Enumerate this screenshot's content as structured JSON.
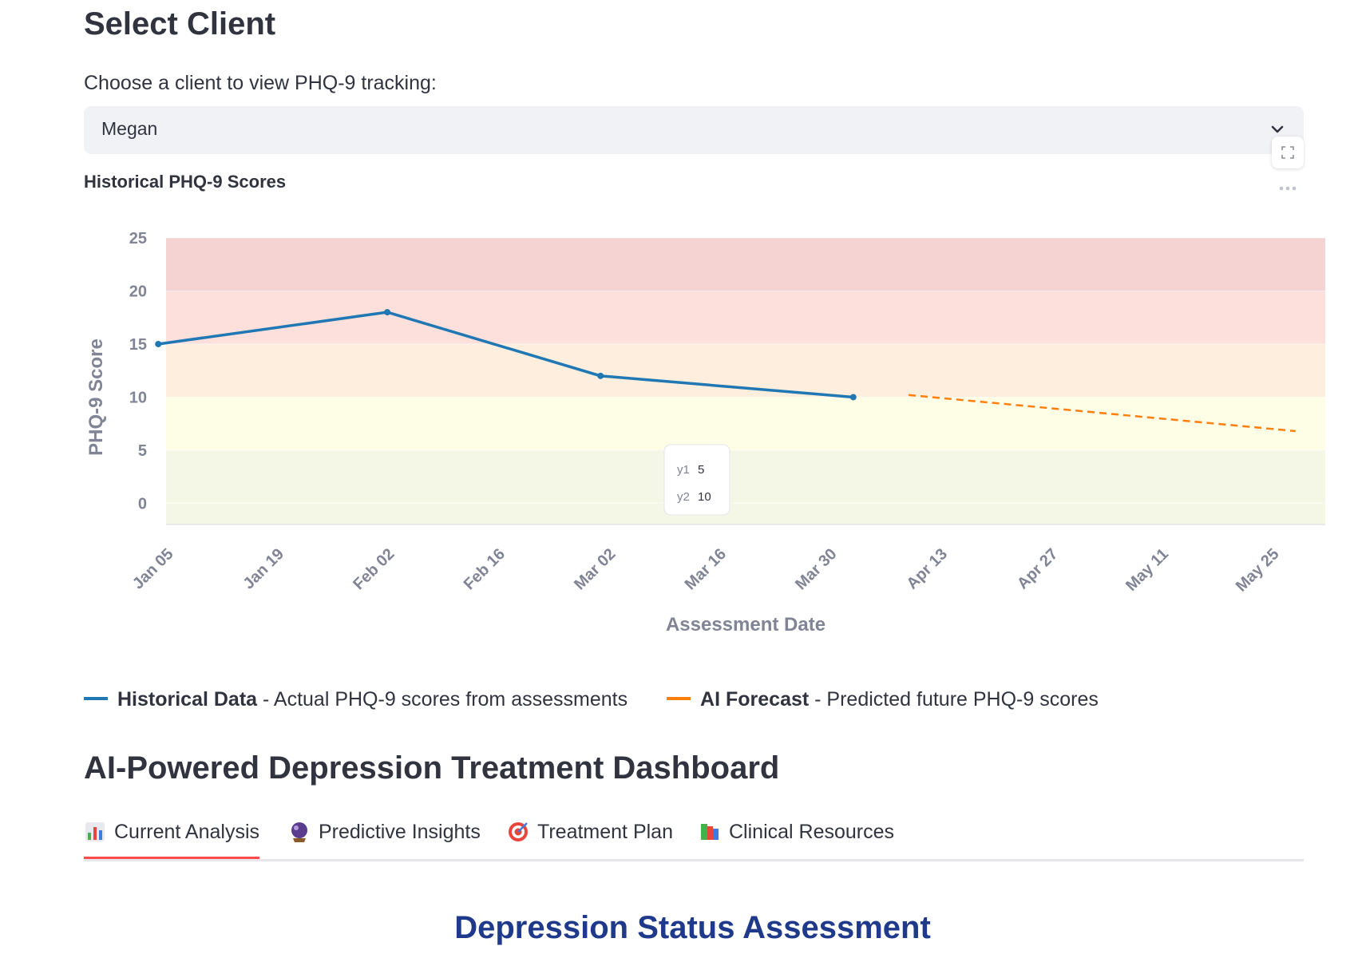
{
  "header": {
    "title": "Select Client"
  },
  "client_select": {
    "label": "Choose a client to view PHQ-9 tracking:",
    "value": "Megan"
  },
  "chart_section": {
    "title": "Historical PHQ-9 Scores"
  },
  "chart_data": {
    "type": "line",
    "xlabel": "Assessment Date",
    "ylabel": "PHQ-9 Score",
    "ylim": [
      -2,
      25
    ],
    "x_ticks": [
      "Jan 05",
      "Jan 19",
      "Feb 02",
      "Feb 16",
      "Mar 02",
      "Mar 16",
      "Mar 30",
      "Apr 13",
      "Apr 27",
      "May 11",
      "May 25"
    ],
    "y_ticks": [
      0,
      5,
      10,
      15,
      20,
      25
    ],
    "bands": [
      {
        "from": -2,
        "to": 5,
        "color": "#f5f7e6"
      },
      {
        "from": 5,
        "to": 10,
        "color": "#fefde6"
      },
      {
        "from": 10,
        "to": 15,
        "color": "#fdeedd"
      },
      {
        "from": 15,
        "to": 20,
        "color": "#fde0dc"
      },
      {
        "from": 20,
        "to": 27,
        "color": "#f5d3d3"
      }
    ],
    "series": [
      {
        "name": "Historical Data",
        "color": "#1f77b4",
        "style": "solid",
        "points": [
          {
            "x": "2025-01-03",
            "y": 15
          },
          {
            "x": "2025-02-01",
            "y": 18
          },
          {
            "x": "2025-02-28",
            "y": 12
          },
          {
            "x": "2025-04-01",
            "y": 10
          }
        ]
      },
      {
        "name": "AI Forecast",
        "color": "#ff7f0e",
        "style": "dashed",
        "points": [
          {
            "x": "2025-04-08",
            "y": 10.2
          },
          {
            "x": "2025-05-27",
            "y": 6.8
          }
        ]
      }
    ],
    "tooltip": {
      "y1_label": "y1",
      "y1_value": "5",
      "y2_label": "y2",
      "y2_value": "10"
    }
  },
  "legend": [
    {
      "color": "#1f77b4",
      "name": "Historical Data",
      "desc": " - Actual PHQ-9 scores from assessments"
    },
    {
      "color": "#ff7f0e",
      "name": "AI Forecast",
      "desc": " - Predicted future PHQ-9 scores"
    }
  ],
  "dashboard": {
    "title": "AI-Powered Depression Treatment Dashboard",
    "tabs": [
      {
        "icon": "bar-chart-icon",
        "label": "Current Analysis",
        "active": true
      },
      {
        "icon": "crystal-ball-icon",
        "label": "Predictive Insights",
        "active": false
      },
      {
        "icon": "target-icon",
        "label": "Treatment Plan",
        "active": false
      },
      {
        "icon": "books-icon",
        "label": "Clinical Resources",
        "active": false
      }
    ]
  },
  "status_section": {
    "title": "Depression Status Assessment"
  }
}
